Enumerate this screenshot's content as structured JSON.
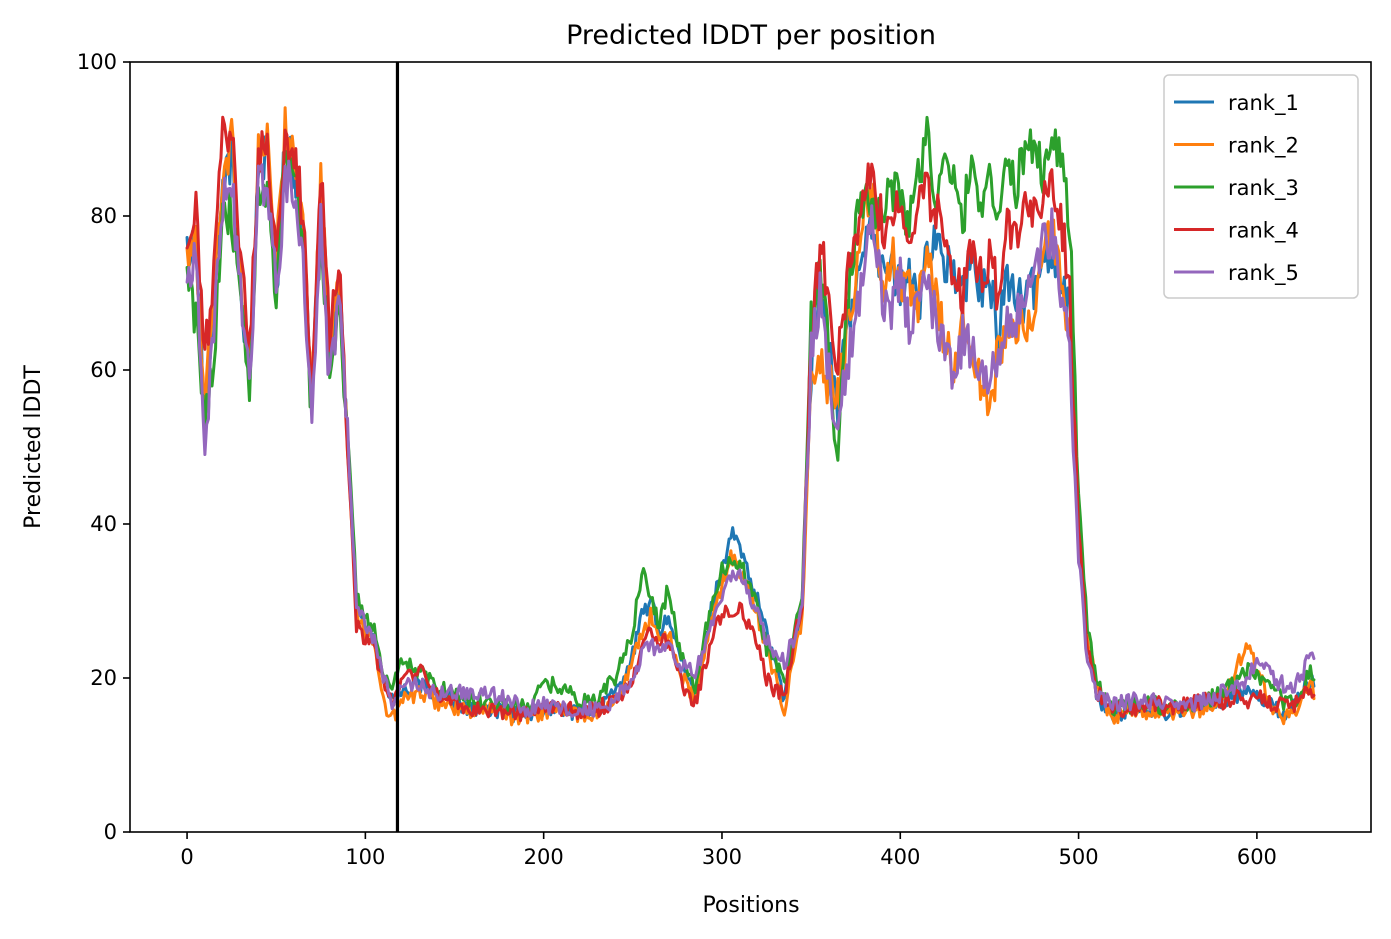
{
  "chart_data": {
    "type": "line",
    "title": "Predicted lDDT per position",
    "xlabel": "Positions",
    "ylabel": "Predicted lDDT",
    "xlim": [
      -32,
      664
    ],
    "ylim": [
      0,
      100
    ],
    "xticks": [
      0,
      100,
      200,
      300,
      400,
      500,
      600
    ],
    "yticks": [
      0,
      20,
      40,
      60,
      80,
      100
    ],
    "grid": false,
    "legend_position": "top-right",
    "vertical_line_x": 118,
    "series": [
      {
        "name": "rank_1",
        "color": "#1f77b4",
        "offset": 0,
        "x": [
          0,
          5,
          10,
          15,
          20,
          25,
          30,
          35,
          40,
          45,
          50,
          55,
          60,
          65,
          70,
          75,
          80,
          85,
          90,
          95,
          100,
          105,
          110,
          115,
          120,
          130,
          140,
          150,
          160,
          170,
          180,
          190,
          200,
          210,
          220,
          230,
          240,
          250,
          255,
          260,
          265,
          270,
          275,
          280,
          285,
          290,
          295,
          300,
          305,
          310,
          315,
          320,
          325,
          330,
          335,
          340,
          345,
          350,
          355,
          360,
          365,
          370,
          375,
          380,
          385,
          390,
          395,
          400,
          405,
          410,
          415,
          420,
          425,
          430,
          435,
          440,
          445,
          450,
          455,
          460,
          465,
          470,
          475,
          480,
          485,
          490,
          495,
          500,
          505,
          510,
          515,
          520,
          530,
          540,
          550,
          560,
          570,
          580,
          590,
          595,
          600,
          605,
          610,
          615,
          620,
          625,
          630,
          632
        ],
        "values": [
          75,
          78,
          52,
          68,
          84,
          88,
          70,
          60,
          86,
          88,
          70,
          90,
          86,
          78,
          55,
          82,
          60,
          72,
          50,
          30,
          27,
          25,
          20,
          17,
          18,
          19,
          18,
          17,
          16,
          16,
          15.5,
          15,
          16,
          16,
          15.5,
          16,
          18,
          23,
          28,
          30,
          26,
          28,
          24,
          20,
          18,
          24,
          30,
          34,
          39,
          37,
          33,
          30,
          26,
          22,
          17,
          24,
          30,
          60,
          72,
          62,
          55,
          65,
          70,
          78,
          80,
          72,
          74,
          70,
          72,
          68,
          76,
          78,
          74,
          72,
          70,
          74,
          71,
          70,
          66,
          72,
          70,
          68,
          71,
          74,
          76,
          72,
          68,
          40,
          24,
          18,
          16,
          15,
          16,
          16,
          15.5,
          16,
          16,
          17,
          18,
          19,
          18,
          17,
          16,
          15.5,
          16,
          18,
          20,
          19
        ]
      },
      {
        "name": "rank_2",
        "color": "#ff7f0e",
        "offset": 0.8,
        "x": [
          0,
          5,
          10,
          15,
          20,
          25,
          30,
          35,
          40,
          45,
          50,
          55,
          60,
          65,
          70,
          75,
          80,
          85,
          90,
          95,
          100,
          105,
          110,
          115,
          120,
          130,
          140,
          150,
          160,
          170,
          180,
          190,
          200,
          210,
          220,
          230,
          240,
          250,
          255,
          260,
          265,
          270,
          275,
          280,
          285,
          290,
          295,
          300,
          305,
          310,
          315,
          320,
          325,
          330,
          335,
          340,
          345,
          350,
          355,
          360,
          365,
          370,
          375,
          380,
          385,
          390,
          395,
          400,
          405,
          410,
          415,
          420,
          425,
          430,
          435,
          440,
          445,
          450,
          455,
          460,
          465,
          470,
          475,
          480,
          485,
          490,
          495,
          500,
          505,
          510,
          515,
          520,
          530,
          540,
          550,
          560,
          570,
          580,
          590,
          595,
          600,
          605,
          610,
          615,
          620,
          625,
          630,
          632
        ],
        "values": [
          74,
          76,
          55,
          70,
          86,
          90,
          72,
          61,
          88,
          89,
          73,
          92,
          88,
          80,
          56,
          85,
          62,
          74,
          50,
          29,
          26,
          24,
          17,
          14.5,
          17,
          18,
          17,
          16,
          15.5,
          16,
          15,
          15,
          15.5,
          16,
          15,
          15.5,
          17,
          22,
          26,
          28,
          25,
          26,
          22,
          19,
          17,
          23,
          28,
          32,
          36,
          34,
          31,
          28,
          24,
          20,
          16,
          22,
          28,
          58,
          60,
          58,
          56,
          66,
          72,
          80,
          82,
          70,
          76,
          72,
          70,
          68,
          74,
          70,
          64,
          60,
          66,
          62,
          58,
          55,
          62,
          66,
          64,
          66,
          68,
          74,
          78,
          72,
          66,
          40,
          25,
          19,
          16,
          15,
          15.5,
          15.5,
          15,
          15.5,
          16,
          17,
          22,
          24,
          21,
          18,
          16,
          15,
          15.5,
          17,
          19,
          18
        ]
      },
      {
        "name": "rank_3",
        "color": "#2ca02c",
        "offset": 1.0,
        "x": [
          0,
          5,
          10,
          15,
          20,
          25,
          30,
          35,
          40,
          45,
          50,
          55,
          60,
          65,
          70,
          75,
          80,
          85,
          90,
          95,
          100,
          105,
          110,
          115,
          120,
          130,
          140,
          150,
          160,
          170,
          180,
          190,
          200,
          210,
          220,
          230,
          240,
          250,
          255,
          260,
          265,
          270,
          275,
          280,
          285,
          290,
          295,
          300,
          305,
          310,
          315,
          320,
          325,
          330,
          335,
          340,
          345,
          350,
          355,
          360,
          365,
          370,
          375,
          380,
          385,
          390,
          395,
          400,
          405,
          410,
          415,
          420,
          425,
          430,
          435,
          440,
          445,
          450,
          455,
          460,
          465,
          470,
          475,
          480,
          485,
          490,
          495,
          500,
          505,
          510,
          515,
          520,
          530,
          540,
          550,
          560,
          570,
          580,
          590,
          595,
          600,
          605,
          610,
          615,
          620,
          625,
          630,
          632
        ],
        "values": [
          72,
          66,
          54,
          62,
          82,
          80,
          68,
          58,
          82,
          84,
          70,
          88,
          86,
          76,
          54,
          80,
          58,
          70,
          52,
          31,
          28,
          26,
          20,
          18,
          22,
          21,
          19,
          18,
          17,
          17,
          16.5,
          16,
          19,
          19,
          17,
          17,
          20,
          26,
          34,
          30,
          27,
          32,
          25,
          21,
          19,
          25,
          31,
          34,
          35,
          35,
          33,
          29,
          24,
          22,
          19,
          25,
          31,
          66,
          74,
          62,
          48,
          68,
          78,
          84,
          82,
          80,
          84,
          82,
          80,
          85,
          91,
          82,
          86,
          84,
          80,
          86,
          82,
          86,
          80,
          86,
          84,
          88,
          90,
          86,
          90,
          88,
          80,
          44,
          26,
          20,
          17,
          16,
          16.5,
          17,
          16,
          16.5,
          17,
          18,
          20,
          21,
          20,
          19,
          18,
          17,
          17,
          18,
          21,
          20
        ]
      },
      {
        "name": "rank_4",
        "color": "#d62728",
        "offset": 1.2,
        "x": [
          0,
          5,
          10,
          15,
          20,
          25,
          30,
          35,
          40,
          45,
          50,
          55,
          60,
          65,
          70,
          75,
          80,
          85,
          90,
          95,
          100,
          105,
          110,
          115,
          120,
          130,
          140,
          150,
          160,
          170,
          180,
          190,
          200,
          210,
          220,
          230,
          240,
          250,
          255,
          260,
          265,
          270,
          275,
          280,
          285,
          290,
          295,
          300,
          305,
          310,
          315,
          320,
          325,
          330,
          335,
          340,
          345,
          350,
          355,
          360,
          365,
          370,
          375,
          380,
          385,
          390,
          395,
          400,
          405,
          410,
          415,
          420,
          425,
          430,
          435,
          440,
          445,
          450,
          455,
          460,
          465,
          470,
          475,
          480,
          485,
          490,
          495,
          500,
          505,
          510,
          515,
          520,
          530,
          540,
          550,
          560,
          570,
          580,
          590,
          595,
          600,
          605,
          610,
          615,
          620,
          625,
          630,
          632
        ],
        "values": [
          75,
          80,
          62,
          72,
          90,
          91,
          76,
          62,
          88,
          90,
          74,
          89,
          88,
          80,
          58,
          86,
          64,
          76,
          50,
          27,
          25,
          24,
          19,
          17,
          20,
          21,
          18,
          17,
          16,
          16,
          15.5,
          15.5,
          16,
          16,
          15.5,
          16,
          17,
          20,
          24,
          26,
          25,
          25,
          22,
          18,
          17,
          21,
          26,
          28,
          29,
          29,
          27,
          24,
          20,
          18,
          18,
          24,
          30,
          64,
          76,
          70,
          60,
          72,
          76,
          84,
          86,
          78,
          80,
          82,
          78,
          80,
          84,
          80,
          78,
          72,
          70,
          76,
          72,
          74,
          70,
          80,
          76,
          82,
          80,
          82,
          86,
          80,
          70,
          40,
          24,
          18,
          17,
          16,
          16,
          17,
          16,
          16.5,
          17,
          17,
          17.5,
          17,
          18,
          17,
          16.5,
          17,
          16.5,
          17,
          19,
          18
        ]
      },
      {
        "name": "rank_5",
        "color": "#9467bd",
        "offset": 0.9,
        "x": [
          0,
          5,
          10,
          15,
          20,
          25,
          30,
          35,
          40,
          45,
          50,
          55,
          60,
          65,
          70,
          75,
          80,
          85,
          90,
          95,
          100,
          105,
          110,
          115,
          120,
          130,
          140,
          150,
          160,
          170,
          180,
          190,
          200,
          210,
          220,
          230,
          240,
          250,
          255,
          260,
          265,
          270,
          275,
          280,
          285,
          290,
          295,
          300,
          305,
          310,
          315,
          320,
          325,
          330,
          335,
          340,
          345,
          350,
          355,
          360,
          365,
          370,
          375,
          380,
          385,
          390,
          395,
          400,
          405,
          410,
          415,
          420,
          425,
          430,
          435,
          440,
          445,
          450,
          455,
          460,
          465,
          470,
          475,
          480,
          485,
          490,
          495,
          500,
          505,
          510,
          515,
          520,
          530,
          540,
          550,
          560,
          570,
          580,
          590,
          595,
          600,
          605,
          610,
          615,
          620,
          625,
          630,
          632
        ],
        "values": [
          71,
          76,
          50,
          66,
          82,
          84,
          70,
          58,
          84,
          85,
          70,
          84,
          84,
          76,
          52,
          80,
          58,
          70,
          52,
          30,
          27,
          25,
          20,
          17,
          19,
          19,
          18,
          18,
          18,
          18,
          17,
          16,
          16.5,
          16,
          16,
          16,
          17,
          20,
          23,
          24,
          24,
          24,
          22,
          21,
          21,
          24,
          28,
          31,
          33,
          33,
          31,
          28,
          25,
          23,
          22,
          25,
          30,
          62,
          70,
          60,
          52,
          60,
          66,
          76,
          80,
          70,
          68,
          72,
          66,
          68,
          72,
          66,
          62,
          60,
          64,
          62,
          58,
          60,
          62,
          68,
          66,
          70,
          72,
          76,
          78,
          70,
          62,
          36,
          22,
          18,
          17,
          16.5,
          17,
          17,
          16.5,
          16.5,
          17,
          18,
          19,
          20,
          22,
          21,
          20,
          19,
          19,
          20,
          24,
          22
        ]
      }
    ]
  }
}
